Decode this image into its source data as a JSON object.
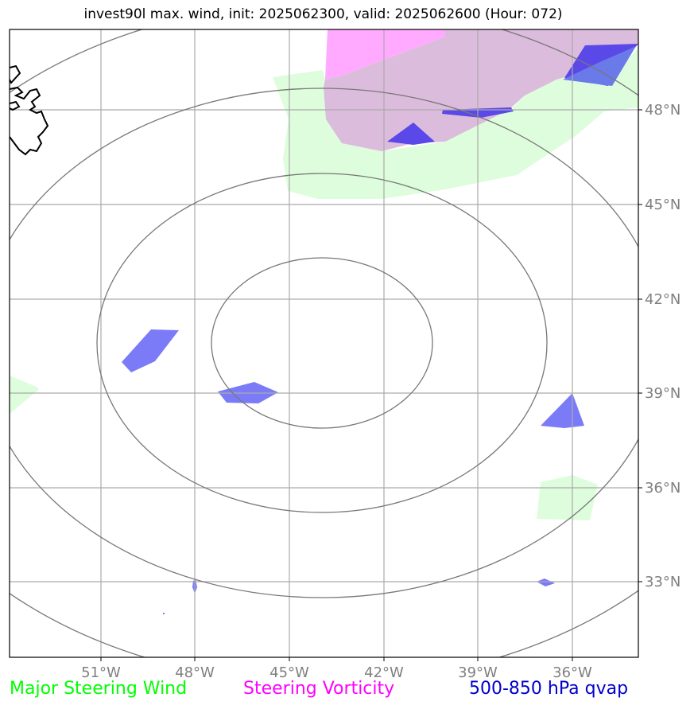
{
  "title": "invest90l max. wind, init: 2025062300, valid: 2025062600 (Hour: 072)",
  "axes": {
    "lon_labels": [
      "51°W",
      "48°W",
      "45°W",
      "42°W",
      "39°W",
      "36°W"
    ],
    "lat_labels": [
      "48°N",
      "45°N",
      "42°N",
      "39°N",
      "36°N",
      "33°N"
    ],
    "tick_color": "#808080",
    "grid": true
  },
  "legend": {
    "items": [
      {
        "label": "Major Steering Wind",
        "color": "#00ff00"
      },
      {
        "label": "Steering Vorticity",
        "color": "#ff00ff"
      },
      {
        "label": "500-850 hPa qvap",
        "color": "#0000cc"
      }
    ]
  },
  "layers": {
    "wind_color": "#ddfddd",
    "vorticity_color": "#ffaaff",
    "vorticity_overlap_color": "#dcbcdc",
    "qvap_color": "#7b7bf8",
    "qvap_dark_color": "#5a48e8",
    "range_ring_color": "#777777",
    "coastline_color": "#000000"
  }
}
